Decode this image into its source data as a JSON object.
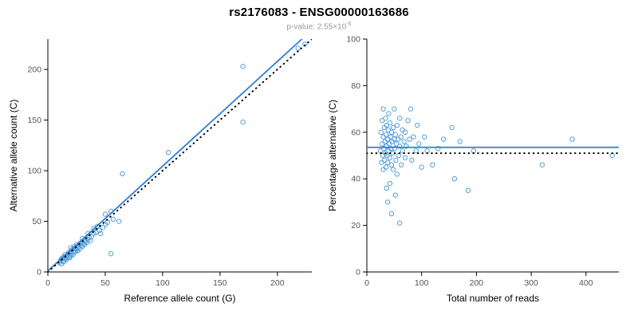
{
  "header": {
    "title": "rs2176083 - ENSG00000163686",
    "pvalue_prefix": "p-value: 2.55×10",
    "pvalue_exponent": "-5"
  },
  "colors": {
    "point": "#55a0d8",
    "regression_line": "#2f7ed8",
    "identity_line": "#000000",
    "axis": "#000000",
    "tick_text": "#555555",
    "label_text": "#000000"
  },
  "chart_data": [
    {
      "type": "scatter",
      "xlabel": "Reference allele count (G)",
      "ylabel": "Alternative allele count (C)",
      "xlim": [
        0,
        230
      ],
      "ylim": [
        0,
        230
      ],
      "xticks": [
        0,
        50,
        100,
        150,
        200
      ],
      "yticks": [
        0,
        50,
        100,
        150,
        200
      ],
      "grid": false,
      "points": [
        [
          10,
          9
        ],
        [
          11,
          11
        ],
        [
          12,
          8
        ],
        [
          12,
          13
        ],
        [
          13,
          11
        ],
        [
          13,
          14
        ],
        [
          14,
          10
        ],
        [
          14,
          15
        ],
        [
          15,
          13
        ],
        [
          15,
          17
        ],
        [
          16,
          12
        ],
        [
          16,
          15
        ],
        [
          17,
          14
        ],
        [
          17,
          17
        ],
        [
          18,
          15
        ],
        [
          18,
          19
        ],
        [
          19,
          14
        ],
        [
          19,
          18
        ],
        [
          20,
          16
        ],
        [
          20,
          20
        ],
        [
          20,
          24
        ],
        [
          21,
          18
        ],
        [
          21,
          22
        ],
        [
          22,
          17
        ],
        [
          22,
          20
        ],
        [
          23,
          21
        ],
        [
          23,
          25
        ],
        [
          24,
          20
        ],
        [
          24,
          23
        ],
        [
          25,
          22
        ],
        [
          25,
          27
        ],
        [
          26,
          21
        ],
        [
          26,
          24
        ],
        [
          27,
          25
        ],
        [
          28,
          23
        ],
        [
          28,
          28
        ],
        [
          29,
          26
        ],
        [
          30,
          25
        ],
        [
          30,
          29
        ],
        [
          30,
          33
        ],
        [
          31,
          28
        ],
        [
          32,
          27
        ],
        [
          32,
          31
        ],
        [
          33,
          30
        ],
        [
          34,
          29
        ],
        [
          35,
          32
        ],
        [
          35,
          38
        ],
        [
          36,
          34
        ],
        [
          37,
          31
        ],
        [
          38,
          35
        ],
        [
          40,
          38
        ],
        [
          40,
          43
        ],
        [
          42,
          39
        ],
        [
          43,
          45
        ],
        [
          45,
          41
        ],
        [
          46,
          38
        ],
        [
          48,
          44
        ],
        [
          50,
          47
        ],
        [
          50,
          57
        ],
        [
          52,
          49
        ],
        [
          55,
          60
        ],
        [
          55,
          18
        ],
        [
          57,
          52
        ],
        [
          62,
          50
        ],
        [
          65,
          97
        ],
        [
          105,
          118
        ],
        [
          170,
          148
        ],
        [
          170,
          203
        ],
        [
          218,
          221
        ],
        [
          224,
          225
        ]
      ],
      "lines": [
        {
          "name": "regression",
          "style": "solid",
          "from": [
            0,
            1
          ],
          "to": [
            230,
            239
          ]
        },
        {
          "name": "identity",
          "style": "dotted",
          "from": [
            0,
            0
          ],
          "to": [
            230,
            230
          ]
        }
      ]
    },
    {
      "type": "scatter",
      "xlabel": "Total number of reads",
      "ylabel": "Percentage alternative (C)",
      "xlim": [
        0,
        460
      ],
      "ylim": [
        0,
        100
      ],
      "xticks": [
        0,
        100,
        200,
        300,
        400
      ],
      "yticks": [
        0,
        20,
        40,
        60,
        80,
        100
      ],
      "grid": false,
      "points": [
        [
          25,
          52
        ],
        [
          26,
          60
        ],
        [
          27,
          47
        ],
        [
          28,
          55
        ],
        [
          28,
          65
        ],
        [
          29,
          50
        ],
        [
          30,
          58
        ],
        [
          30,
          44
        ],
        [
          30,
          70
        ],
        [
          31,
          53
        ],
        [
          32,
          62
        ],
        [
          32,
          48
        ],
        [
          33,
          56
        ],
        [
          34,
          51
        ],
        [
          34,
          66
        ],
        [
          35,
          59
        ],
        [
          35,
          45
        ],
        [
          36,
          36
        ],
        [
          36,
          54
        ],
        [
          36,
          63
        ],
        [
          37,
          50
        ],
        [
          38,
          57
        ],
        [
          38,
          47
        ],
        [
          38,
          30
        ],
        [
          39,
          61
        ],
        [
          40,
          52
        ],
        [
          40,
          68
        ],
        [
          41,
          55
        ],
        [
          42,
          49
        ],
        [
          42,
          64
        ],
        [
          42,
          38
        ],
        [
          43,
          58
        ],
        [
          44,
          53
        ],
        [
          45,
          60
        ],
        [
          45,
          46
        ],
        [
          45,
          25
        ],
        [
          46,
          56
        ],
        [
          47,
          51
        ],
        [
          48,
          62
        ],
        [
          48,
          44
        ],
        [
          50,
          57
        ],
        [
          50,
          70
        ],
        [
          51,
          53
        ],
        [
          52,
          59
        ],
        [
          52,
          33
        ],
        [
          53,
          48
        ],
        [
          54,
          55
        ],
        [
          55,
          63
        ],
        [
          55,
          42
        ],
        [
          57,
          57
        ],
        [
          58,
          50
        ],
        [
          60,
          54
        ],
        [
          60,
          66
        ],
        [
          60,
          21
        ],
        [
          62,
          58
        ],
        [
          63,
          46
        ],
        [
          65,
          52
        ],
        [
          65,
          61
        ],
        [
          68,
          56
        ],
        [
          70,
          49
        ],
        [
          70,
          60
        ],
        [
          72,
          54
        ],
        [
          75,
          65
        ],
        [
          78,
          57
        ],
        [
          80,
          70
        ],
        [
          82,
          48
        ],
        [
          85,
          58
        ],
        [
          90,
          52
        ],
        [
          92,
          63
        ],
        [
          95,
          55
        ],
        [
          100,
          45
        ],
        [
          105,
          58
        ],
        [
          110,
          52
        ],
        [
          120,
          46
        ],
        [
          130,
          53
        ],
        [
          140,
          57
        ],
        [
          155,
          62
        ],
        [
          160,
          40
        ],
        [
          170,
          56
        ],
        [
          185,
          35
        ],
        [
          195,
          52
        ],
        [
          320,
          46
        ],
        [
          375,
          57
        ],
        [
          448,
          50
        ]
      ],
      "lines": [
        {
          "name": "mean",
          "style": "solid",
          "from": [
            0,
            53.5
          ],
          "to": [
            460,
            53.5
          ]
        },
        {
          "name": "expected",
          "style": "dotted",
          "from": [
            0,
            51
          ],
          "to": [
            460,
            51
          ]
        }
      ]
    }
  ]
}
